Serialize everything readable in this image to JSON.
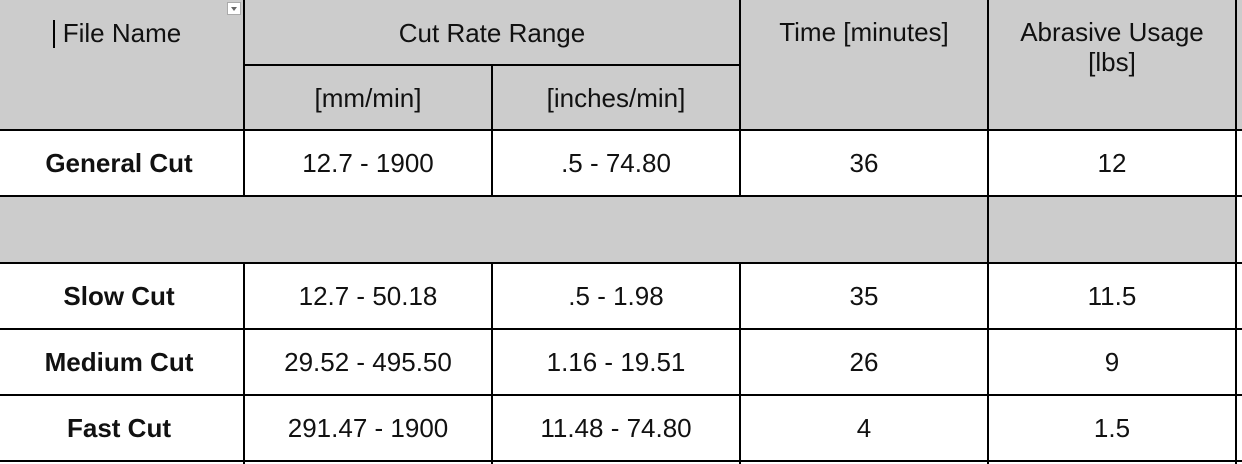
{
  "table": {
    "header": {
      "file_name": "File Name",
      "cut_rate_range": "Cut Rate Range",
      "mm": "[mm/min]",
      "inches": "[inches/min]",
      "time": "Time [minutes]",
      "abrasive": "Abrasive Usage [lbs]"
    },
    "rows": [
      [
        "General Cut",
        "12.7 - 1900",
        ".5 - 74.80",
        "36",
        "12"
      ],
      [
        "Slow Cut",
        "12.7 - 50.18",
        ".5 - 1.98",
        "35",
        "11.5"
      ],
      [
        "Medium Cut",
        "29.52 - 495.50",
        "1.16 - 19.51",
        "26",
        "9"
      ],
      [
        "Fast Cut",
        "291.47 - 1900",
        "11.48 - 74.80",
        "4",
        "1.5"
      ]
    ]
  }
}
